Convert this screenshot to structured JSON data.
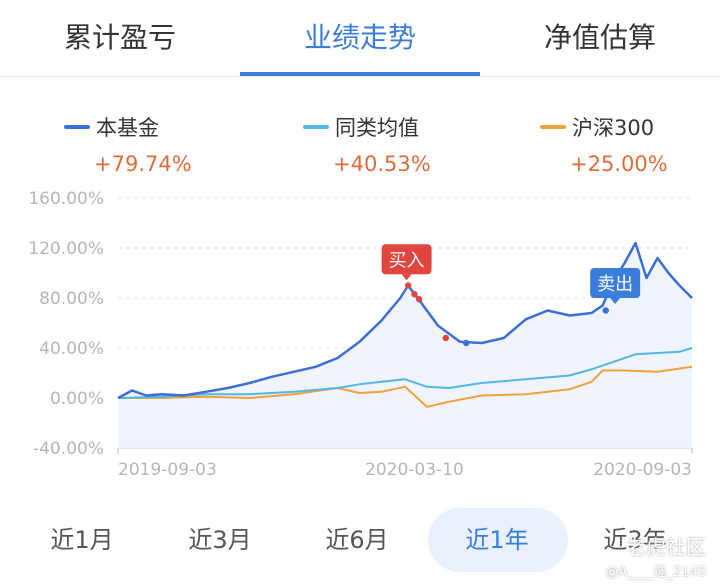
{
  "tabs": [
    {
      "label": "累计盈亏"
    },
    {
      "label": "业绩走势"
    },
    {
      "label": "净值估算"
    }
  ],
  "active_tab": 1,
  "legend": [
    {
      "name": "本基金",
      "value": "+79.74%",
      "color": "#3b6fd6"
    },
    {
      "name": "同类均值",
      "value": "+40.53%",
      "color": "#52b6e6"
    },
    {
      "name": "沪深300",
      "value": "+25.00%",
      "color": "#f0a03c"
    }
  ],
  "ranges": [
    {
      "label": "近1月"
    },
    {
      "label": "近3月"
    },
    {
      "label": "近6月"
    },
    {
      "label": "近1年"
    },
    {
      "label": "近3年"
    }
  ],
  "active_range": 3,
  "watermark": {
    "text": "老虎社区",
    "sub": "@A____选_2145"
  },
  "chart_data": {
    "type": "line",
    "y_ticks": [
      "160.00%",
      "120.00%",
      "80.00%",
      "40.00%",
      "0.00%",
      "-40.00%"
    ],
    "ylim": [
      -40,
      160
    ],
    "x_tick_labels": [
      "2019-09-03",
      "2020-03-10",
      "2020-09-03"
    ],
    "x_range": [
      "2019-09-03",
      "2020-09-03"
    ],
    "grid": true,
    "annotations": [
      {
        "label": "买入",
        "date": "2020-03-05",
        "value": 87,
        "color": "#e0453f"
      },
      {
        "label": "卖出",
        "date": "2020-07-16",
        "value": 68,
        "color": "#3b7ddd"
      }
    ],
    "series": [
      {
        "name": "本基金",
        "color": "#3b6fd6",
        "dates": [
          "2019-09-03",
          "2019-09-12",
          "2019-09-21",
          "2019-10-01",
          "2019-10-15",
          "2019-10-29",
          "2019-11-12",
          "2019-11-26",
          "2019-12-10",
          "2019-12-24",
          "2020-01-07",
          "2020-01-21",
          "2020-02-04",
          "2020-02-18",
          "2020-03-01",
          "2020-03-06",
          "2020-03-15",
          "2020-03-25",
          "2020-04-08",
          "2020-04-22",
          "2020-05-06",
          "2020-05-20",
          "2020-06-03",
          "2020-06-17",
          "2020-07-01",
          "2020-07-08",
          "2020-07-15",
          "2020-07-22",
          "2020-07-29",
          "2020-08-05",
          "2020-08-12",
          "2020-08-19",
          "2020-08-26",
          "2020-09-03"
        ],
        "values": [
          0,
          6,
          2,
          3,
          2,
          5,
          8,
          12,
          17,
          21,
          25,
          32,
          45,
          62,
          80,
          90,
          75,
          58,
          45,
          44,
          48,
          63,
          70,
          66,
          68,
          74,
          94,
          108,
          124,
          96,
          112,
          100,
          90,
          80
        ]
      },
      {
        "name": "同类均值",
        "color": "#52b6e6",
        "dates": [
          "2019-09-03",
          "2019-10-01",
          "2019-10-29",
          "2019-11-26",
          "2019-12-24",
          "2020-01-21",
          "2020-02-04",
          "2020-02-18",
          "2020-03-04",
          "2020-03-18",
          "2020-04-01",
          "2020-04-22",
          "2020-05-20",
          "2020-06-17",
          "2020-07-01",
          "2020-07-15",
          "2020-07-29",
          "2020-08-12",
          "2020-08-26",
          "2020-09-03"
        ],
        "values": [
          0,
          1,
          3,
          3,
          5,
          8,
          11,
          13,
          15,
          9,
          8,
          12,
          15,
          18,
          23,
          29,
          35,
          36,
          37,
          40
        ]
      },
      {
        "name": "沪深300",
        "color": "#f0a03c",
        "dates": [
          "2019-09-03",
          "2019-10-01",
          "2019-10-29",
          "2019-11-26",
          "2019-12-24",
          "2020-01-21",
          "2020-02-04",
          "2020-02-18",
          "2020-03-04",
          "2020-03-18",
          "2020-04-01",
          "2020-04-22",
          "2020-05-20",
          "2020-06-17",
          "2020-07-01",
          "2020-07-08",
          "2020-07-22",
          "2020-08-12",
          "2020-09-03"
        ],
        "values": [
          0,
          0,
          1,
          0,
          3,
          8,
          4,
          5,
          9,
          -7,
          -3,
          2,
          3,
          7,
          13,
          22,
          22,
          21,
          25
        ]
      }
    ]
  }
}
